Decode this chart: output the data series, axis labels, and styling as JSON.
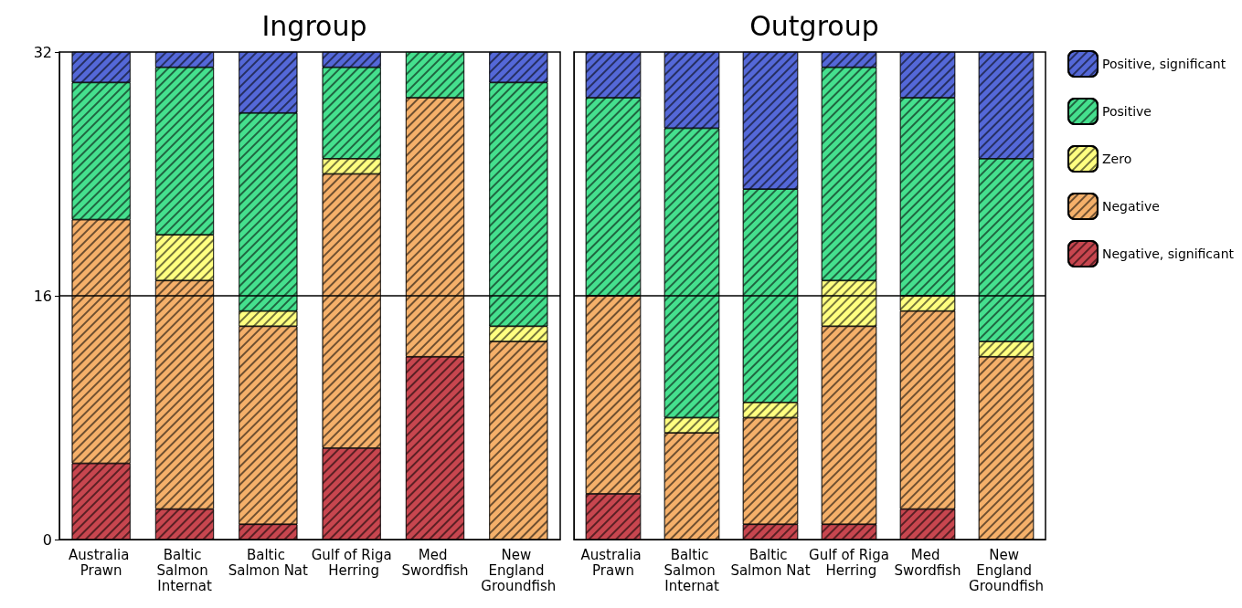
{
  "chart_data": [
    {
      "type": "bar",
      "title": "Ingroup",
      "stacked": true,
      "categories": [
        "Australia Prawn",
        "Baltic Salmon Internat",
        "Baltic Salmon Nat",
        "Gulf of Riga Herring",
        "Med Swordfish",
        "New England Groundfish"
      ],
      "series": [
        {
          "color": "#c8464f",
          "values": [
            5,
            2,
            1,
            6,
            12,
            0
          ]
        },
        {
          "color": "#f5b06a",
          "values": [
            16,
            15,
            13,
            18,
            17,
            13
          ]
        },
        {
          "color": "#ffff80",
          "values": [
            0,
            3,
            1,
            1,
            0,
            1
          ]
        },
        {
          "color": "#45e08e",
          "values": [
            9,
            11,
            13,
            6,
            3,
            16
          ]
        },
        {
          "color": "#5468d8",
          "values": [
            2,
            1,
            4,
            1,
            0,
            2
          ]
        }
      ],
      "ylim": [
        0,
        32
      ],
      "yticks": [
        0,
        16,
        32
      ],
      "ref_lines": [
        {
          "axis": "y",
          "value": 16,
          "color": "#000000"
        }
      ],
      "grid": false,
      "legend": false
    },
    {
      "type": "bar",
      "title": "Outgroup",
      "stacked": true,
      "categories": [
        "Australia Prawn",
        "Baltic Salmon Internat",
        "Baltic Salmon Nat",
        "Gulf of Riga Herring",
        "Med Swordfish",
        "New England Groundfish"
      ],
      "series": [
        {
          "name": "Negative, significant",
          "color": "#c8464f",
          "values": [
            3,
            0,
            1,
            1,
            2,
            0
          ]
        },
        {
          "name": "Negative",
          "color": "#f5b06a",
          "values": [
            13,
            7,
            7,
            13,
            13,
            12
          ]
        },
        {
          "name": "Zero",
          "color": "#ffff80",
          "values": [
            0,
            1,
            1,
            3,
            1,
            1
          ]
        },
        {
          "name": "Positive",
          "color": "#45e08e",
          "values": [
            13,
            19,
            14,
            14,
            13,
            12
          ]
        },
        {
          "name": "Positive, significant",
          "color": "#5468d8",
          "values": [
            3,
            5,
            9,
            1,
            3,
            7
          ]
        }
      ],
      "ylim": [
        0,
        32
      ],
      "yticks": [
        0,
        16,
        32
      ],
      "tick_labels": "x",
      "ref_lines": [
        {
          "axis": "y",
          "value": 16,
          "color": "#000000"
        }
      ],
      "grid": false,
      "legend": "right"
    }
  ]
}
